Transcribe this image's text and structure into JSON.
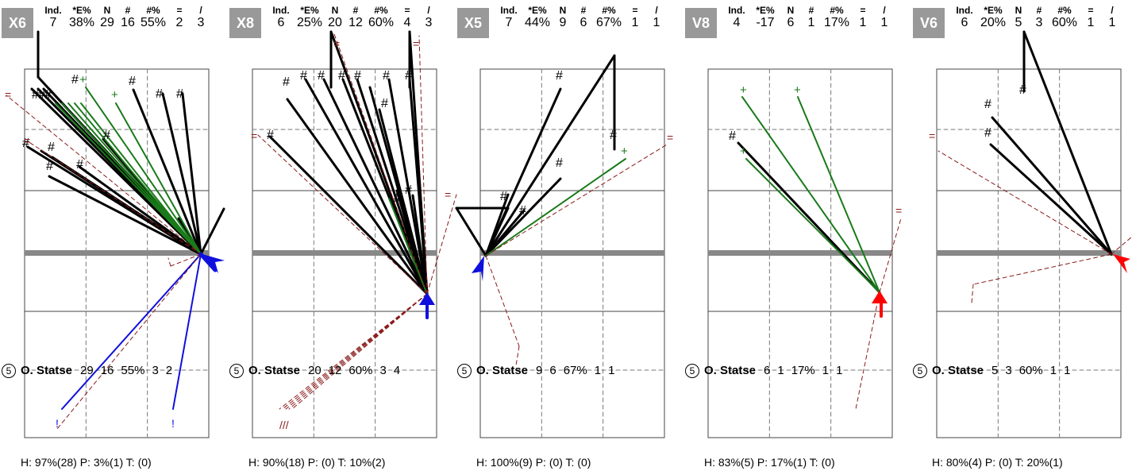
{
  "header_labels": [
    "Ind.",
    "*E%",
    "N",
    "#",
    "#%",
    "=",
    "/"
  ],
  "player": {
    "jersey": "5",
    "name": "O. Statse"
  },
  "colors": {
    "black": "#000000",
    "green": "#1a7a1a",
    "blue": "#1010dd",
    "red": "#ff0000",
    "darkred": "#8b1a1a",
    "grey": "#888888"
  },
  "panels": [
    {
      "zone": "X6",
      "stats": {
        "ind": "7",
        "e": "38%",
        "n": "29",
        "k": "16",
        "kp": "55%",
        "eq": "2",
        "sl": "3"
      },
      "player_stats": [
        "29",
        "16",
        "55%",
        "3",
        "2"
      ],
      "hpt": "H: 97%(28)  P: 3%(1)  T: (0)"
    },
    {
      "zone": "X8",
      "stats": {
        "ind": "6",
        "e": "25%",
        "n": "20",
        "k": "12",
        "kp": "60%",
        "eq": "4",
        "sl": "3"
      },
      "player_stats": [
        "20",
        "12",
        "60%",
        "3",
        "4"
      ],
      "hpt": "H: 90%(18)  P: (0)  T: 10%(2)"
    },
    {
      "zone": "X5",
      "stats": {
        "ind": "7",
        "e": "44%",
        "n": "9",
        "k": "6",
        "kp": "67%",
        "eq": "1",
        "sl": "1"
      },
      "player_stats": [
        "9",
        "6",
        "67%",
        "1",
        "1"
      ],
      "hpt": "H: 100%(9)  P: (0)  T: (0)"
    },
    {
      "zone": "V8",
      "stats": {
        "ind": "4",
        "e": "-17",
        "n": "6",
        "k": "1",
        "kp": "17%",
        "eq": "1",
        "sl": "1"
      },
      "player_stats": [
        "6",
        "1",
        "17%",
        "1",
        "1"
      ],
      "hpt": "H: 83%(5)  P: 17%(1)  T: (0)"
    },
    {
      "zone": "V6",
      "stats": {
        "ind": "6",
        "e": "20%",
        "n": "5",
        "k": "3",
        "kp": "60%",
        "eq": "1",
        "sl": "1"
      },
      "player_stats": [
        "5",
        "3",
        "60%",
        "1",
        "1"
      ],
      "hpt": "H: 80%(4)  P: (0)  T: 20%(1)"
    }
  ]
}
